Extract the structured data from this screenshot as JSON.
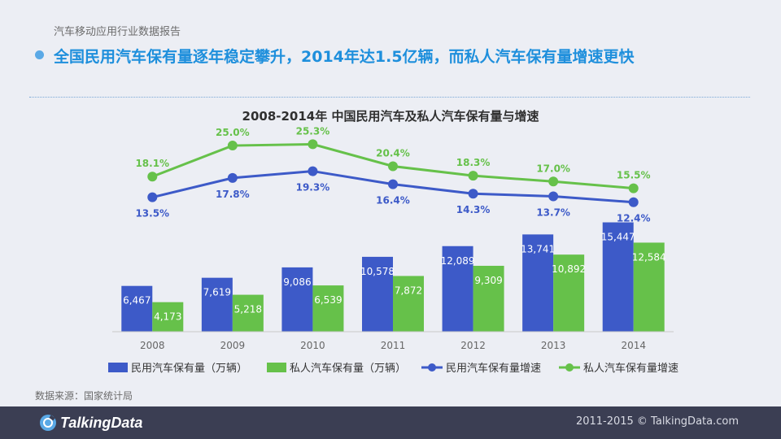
{
  "header": {
    "report_label": "汽车移动应用行业数据报告",
    "headline": "全国民用汽车保有量逐年稳定攀升，2014年达1.5亿辆，而私人汽车保有量增速更快"
  },
  "colors": {
    "civil": "#3d5ac8",
    "private": "#66c14a",
    "accent": "#1e8fdc"
  },
  "chart_data": {
    "type": "bar",
    "title": "2008-2014年 中国民用汽车及私人汽车保有量与增速",
    "categories": [
      "2008",
      "2009",
      "2010",
      "2011",
      "2012",
      "2013",
      "2014"
    ],
    "series": [
      {
        "name": "民用汽车保有量（万辆）",
        "kind": "bar",
        "values": [
          6467,
          7619,
          9086,
          10578,
          12089,
          13741,
          15447
        ],
        "labels": [
          "6,467",
          "7,619",
          "9,086",
          "10,578",
          "12,089",
          "13,741",
          "15,447"
        ]
      },
      {
        "name": "私人汽车保有量（万辆）",
        "kind": "bar",
        "values": [
          4173,
          5218,
          6539,
          7872,
          9309,
          10892,
          12584
        ],
        "labels": [
          "4,173",
          "5,218",
          "6,539",
          "7,872",
          "9,309",
          "10,892",
          "12,584"
        ]
      },
      {
        "name": "民用汽车保有量增速",
        "kind": "line",
        "values": [
          13.5,
          17.8,
          19.3,
          16.4,
          14.3,
          13.7,
          12.4
        ],
        "labels": [
          "13.5%",
          "17.8%",
          "19.3%",
          "16.4%",
          "14.3%",
          "13.7%",
          "12.4%"
        ]
      },
      {
        "name": "私人汽车保有量增速",
        "kind": "line",
        "values": [
          18.1,
          25.0,
          25.3,
          20.4,
          18.3,
          17.0,
          15.5
        ],
        "labels": [
          "18.1%",
          "25.0%",
          "25.3%",
          "20.4%",
          "18.3%",
          "17.0%",
          "15.5%"
        ]
      }
    ],
    "bar_ylim": [
      0,
      17000
    ],
    "line_ylim": [
      10,
      27
    ],
    "legend_position": "bottom"
  },
  "source_note": "数据来源：国家统计局",
  "footer": {
    "logo_text": "TalkingData",
    "copyright": "2011-2015 © TalkingData.com"
  }
}
